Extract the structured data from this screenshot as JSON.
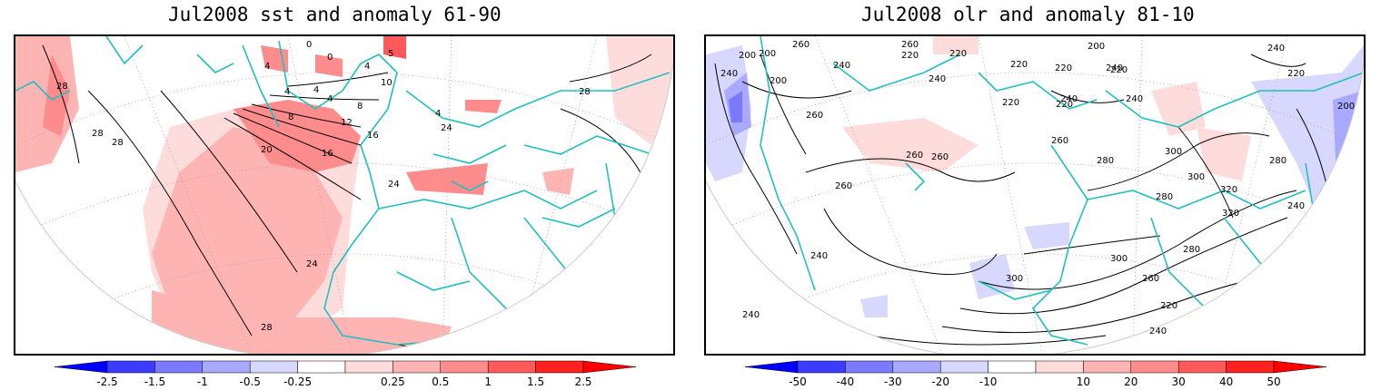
{
  "left_panel": {
    "title": "Jul2008 sst and anomaly 61-90",
    "contour_labels": [
      "0",
      "4",
      "4",
      "4",
      "4",
      "4",
      "8",
      "8",
      "12",
      "16",
      "16",
      "20",
      "24",
      "24",
      "24",
      "28",
      "28",
      "28",
      "28",
      "28",
      "10",
      "0",
      "5",
      "4"
    ],
    "colorbar": {
      "ticks": [
        "-2.5",
        "-1.5",
        "-1",
        "-0.5",
        "-0.25",
        "0.25",
        "0.5",
        "1",
        "1.5",
        "2.5"
      ],
      "colors": [
        "#0000ff",
        "#3c3cff",
        "#7a7aff",
        "#a9a9ff",
        "#d8d8ff",
        "#ffffff",
        "#ffdcdc",
        "#ffb4b4",
        "#ff8c8c",
        "#ff5a5a",
        "#ff2020",
        "#ff0000"
      ]
    }
  },
  "right_panel": {
    "title": "Jul2008 olr and anomaly 81-10",
    "contour_labels": [
      "200",
      "200",
      "200",
      "200",
      "220",
      "220",
      "220",
      "220",
      "220",
      "220",
      "220",
      "220",
      "240",
      "240",
      "240",
      "240",
      "240",
      "240",
      "240",
      "240",
      "260",
      "260",
      "260",
      "260",
      "260",
      "260",
      "260",
      "280",
      "280",
      "280",
      "280",
      "300",
      "300",
      "300",
      "300",
      "320",
      "320",
      "200",
      "260",
      "240",
      "240",
      "240",
      "220"
    ],
    "colorbar": {
      "ticks": [
        "-50",
        "-40",
        "-30",
        "-20",
        "-10",
        "10",
        "20",
        "30",
        "40",
        "50"
      ],
      "colors": [
        "#0000ff",
        "#3c3cff",
        "#7a7aff",
        "#a9a9ff",
        "#d8d8ff",
        "#ffffff",
        "#ffdcdc",
        "#ffb4b4",
        "#ff8c8c",
        "#ff5a5a",
        "#ff2020",
        "#ff0000"
      ]
    }
  },
  "colors": {
    "coastline": "#20c0c0",
    "contour": "#000000",
    "grid": "#a0a0a0"
  }
}
